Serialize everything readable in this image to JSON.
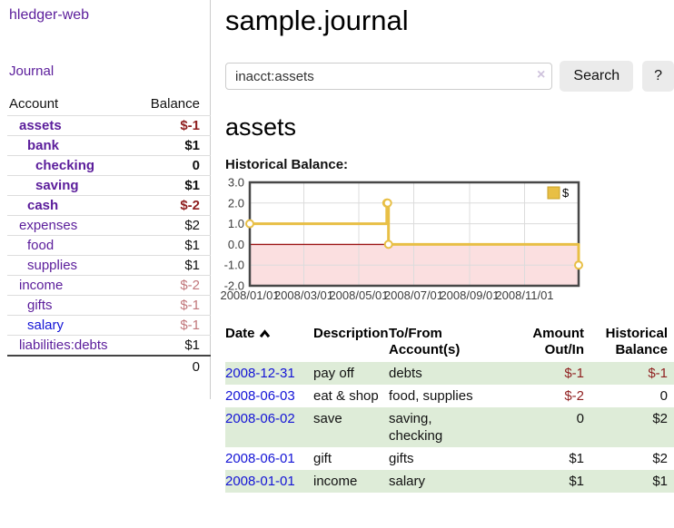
{
  "app": {
    "brand": "hledger-web"
  },
  "sidebar": {
    "journal_link": "Journal",
    "accounts": {
      "header_account": "Account",
      "header_balance": "Balance",
      "rows": [
        {
          "name": "assets",
          "indent": 0,
          "bold": true,
          "balance": "$-1",
          "neg": "neg-strong",
          "link": "purple"
        },
        {
          "name": "bank",
          "indent": 1,
          "bold": true,
          "balance": "$1",
          "neg": "",
          "link": "purple"
        },
        {
          "name": "checking",
          "indent": 2,
          "bold": true,
          "balance": "0",
          "neg": "",
          "link": "purple"
        },
        {
          "name": "saving",
          "indent": 2,
          "bold": true,
          "balance": "$1",
          "neg": "",
          "link": "purple"
        },
        {
          "name": "cash",
          "indent": 1,
          "bold": true,
          "balance": "$-2",
          "neg": "neg-strong",
          "link": "purple"
        },
        {
          "name": "expenses",
          "indent": 0,
          "bold": false,
          "balance": "$2",
          "neg": "",
          "link": "purple"
        },
        {
          "name": "food",
          "indent": 1,
          "bold": false,
          "balance": "$1",
          "neg": "",
          "link": "purple"
        },
        {
          "name": "supplies",
          "indent": 1,
          "bold": false,
          "balance": "$1",
          "neg": "",
          "link": "purple"
        },
        {
          "name": "income",
          "indent": 0,
          "bold": false,
          "balance": "$-2",
          "neg": "neg-soft",
          "link": "purple"
        },
        {
          "name": "gifts",
          "indent": 1,
          "bold": false,
          "balance": "$-1",
          "neg": "neg-soft",
          "link": "purple"
        },
        {
          "name": "salary",
          "indent": 1,
          "bold": false,
          "balance": "$-1",
          "neg": "neg-soft",
          "link": "blue"
        },
        {
          "name": "liabilities:debts",
          "indent": 0,
          "bold": false,
          "balance": "$1",
          "neg": "",
          "link": "purple"
        }
      ],
      "total": "0"
    }
  },
  "main": {
    "title": "sample.journal",
    "search": {
      "value": "inacct:assets",
      "clear_icon": "×",
      "button_label": "Search",
      "help_label": "?"
    },
    "account_heading": "assets"
  },
  "chart_data": {
    "type": "line",
    "step": true,
    "title": "Historical Balance:",
    "series": [
      {
        "name": "$",
        "points": [
          {
            "date": "2008-01-01",
            "value": 1
          },
          {
            "date": "2008-06-01",
            "value": 2
          },
          {
            "date": "2008-06-02",
            "value": 2
          },
          {
            "date": "2008-06-03",
            "value": 0
          },
          {
            "date": "2008-12-31",
            "value": -1
          }
        ]
      }
    ],
    "xrange": [
      "2008-01-01",
      "2008-12-31"
    ],
    "ylim": [
      -2,
      3
    ],
    "yticks": [
      "3.0",
      "2.0",
      "1.0",
      "0.0",
      "-1.0",
      "-2.0"
    ],
    "xticks": [
      "2008/01/01",
      "2008/03/01",
      "2008/05/01",
      "2008/07/01",
      "2008/09/01",
      "2008/11/01"
    ],
    "legend": {
      "label": "$",
      "position": "top-right"
    },
    "grid": true,
    "colors": {
      "line": "#e8bf45",
      "marker_fill": "#ffffff",
      "negative_fill": "#fbdfe0",
      "zero_line": "#9c1414",
      "border": "#474747",
      "grid": "#dcdcdc",
      "tick_text": "#3c3c3c",
      "legend_box_border": "#c9a227"
    }
  },
  "register": {
    "headers": [
      [
        "Date",
        ""
      ],
      [
        "Description",
        ""
      ],
      [
        "To/From",
        "Account(s)"
      ],
      [
        "Amount",
        "Out/In"
      ],
      [
        "Historical",
        "Balance"
      ]
    ],
    "rows": [
      {
        "date": "2008-12-31",
        "description": "pay off",
        "accounts": "debts",
        "amount": "$-1",
        "amount_neg": true,
        "balance": "$-1",
        "balance_neg": true
      },
      {
        "date": "2008-06-03",
        "description": "eat & shop",
        "accounts": "food, supplies",
        "amount": "$-2",
        "amount_neg": true,
        "balance": "0",
        "balance_neg": false
      },
      {
        "date": "2008-06-02",
        "description": "save",
        "accounts": "saving, checking",
        "amount": "0",
        "amount_neg": false,
        "balance": "$2",
        "balance_neg": false
      },
      {
        "date": "2008-06-01",
        "description": "gift",
        "accounts": "gifts",
        "amount": "$1",
        "amount_neg": false,
        "balance": "$2",
        "balance_neg": false
      },
      {
        "date": "2008-01-01",
        "description": "income",
        "accounts": "salary",
        "amount": "$1",
        "amount_neg": false,
        "balance": "$1",
        "balance_neg": false
      }
    ]
  }
}
